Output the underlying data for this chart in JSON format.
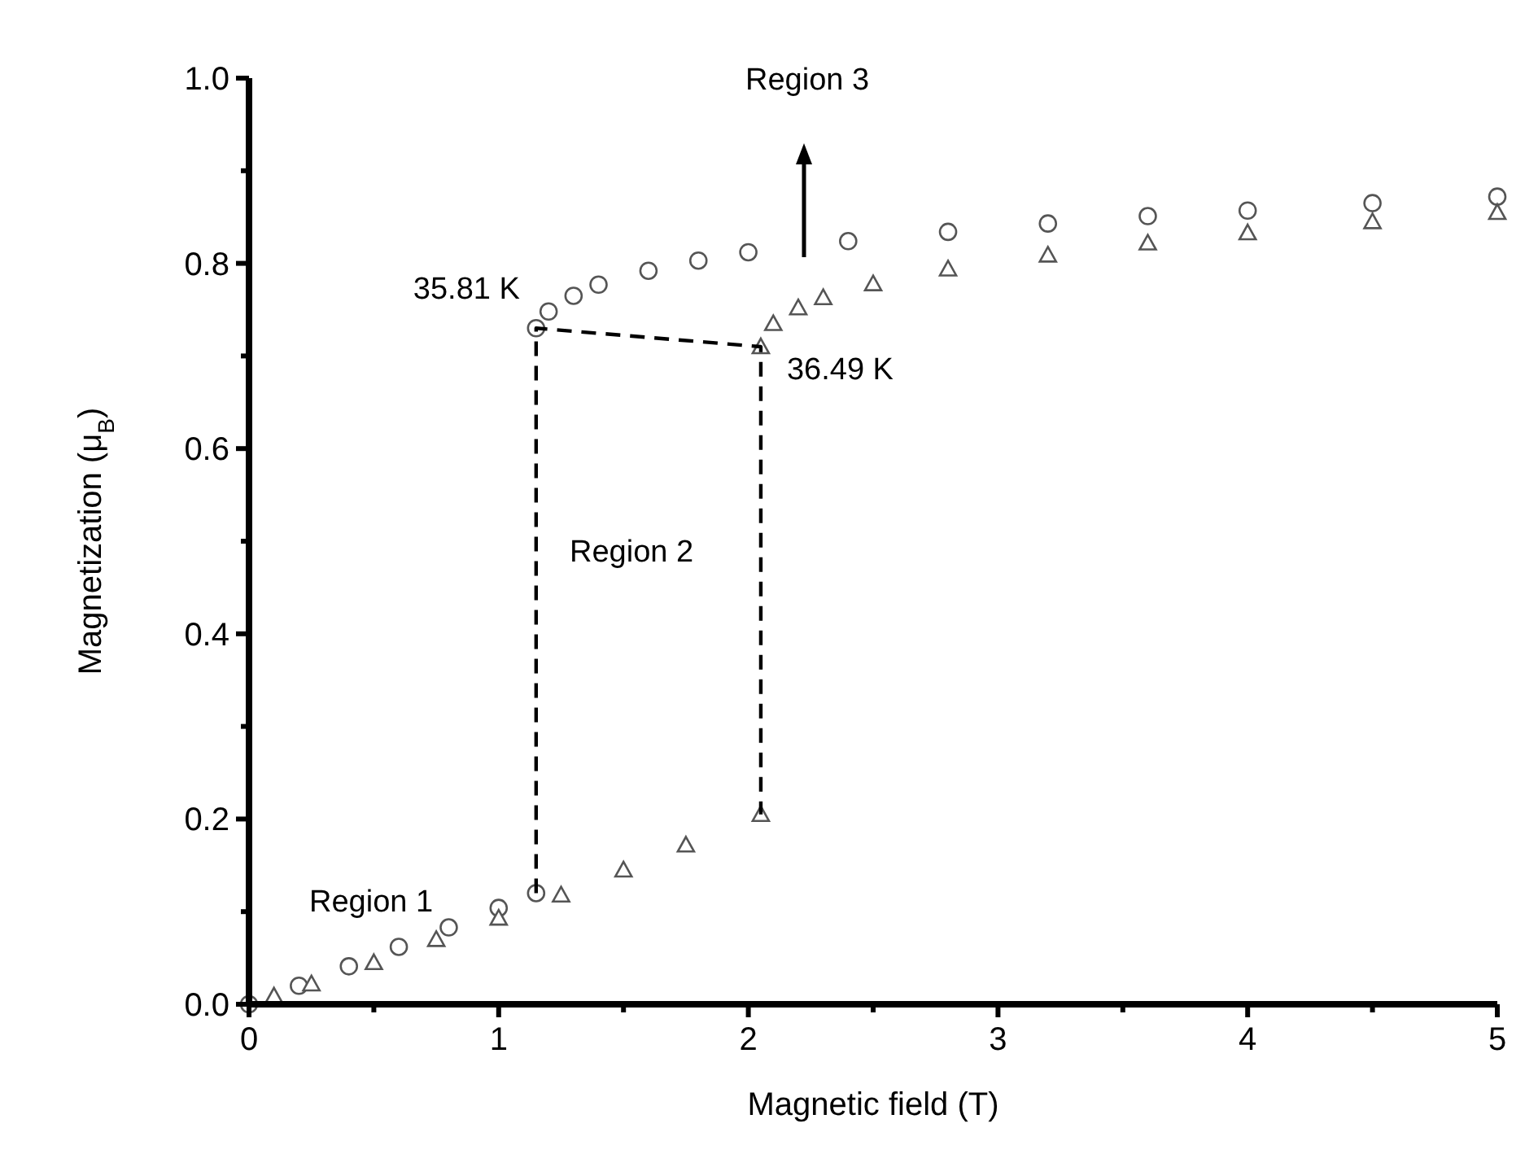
{
  "chart_data": {
    "type": "scatter",
    "xlabel": "Magnetic field (T)",
    "ylabel": "Magnetization (μ$_{B}$)",
    "xlim": [
      0,
      5
    ],
    "ylim": [
      0,
      1
    ],
    "xticks": [
      0,
      {
        "value": 0.5,
        "label": null
      },
      1,
      {
        "value": 1.5,
        "label": null
      },
      2,
      {
        "value": 2.5,
        "label": null
      },
      3,
      {
        "value": 3.5,
        "label": null
      },
      4,
      {
        "value": 4.5,
        "label": null
      },
      5
    ],
    "yticks": [
      {
        "value": 0,
        "label": "0.0"
      },
      {
        "value": 0.1,
        "label": null
      },
      0.2,
      {
        "value": 0.3,
        "label": null
      },
      0.4,
      {
        "value": 0.5,
        "label": null
      },
      0.6,
      {
        "value": 0.7,
        "label": null
      },
      0.8,
      {
        "value": 0.9,
        "label": null
      },
      {
        "value": 1,
        "label": "1.0"
      }
    ],
    "grid": false,
    "series": [
      {
        "marker": "circle",
        "color": "#555555",
        "x": [
          0,
          0.2,
          0.4,
          0.6,
          0.8,
          1.0,
          1.15,
          1.15,
          1.2,
          1.3,
          1.4,
          1.6,
          1.8,
          2.0,
          2.4,
          2.8,
          3.2,
          3.6,
          4.0,
          4.5,
          5.0
        ],
        "values": [
          0,
          0.02,
          0.041,
          0.062,
          0.083,
          0.104,
          0.12,
          0.73,
          0.748,
          0.765,
          0.777,
          0.792,
          0.803,
          0.812,
          0.824,
          0.834,
          0.843,
          0.851,
          0.857,
          0.865,
          0.872
        ]
      },
      {
        "marker": "triangle",
        "color": "#555555",
        "x": [
          0.1,
          0.25,
          0.5,
          0.75,
          1.0,
          1.25,
          1.5,
          1.75,
          2.05,
          2.05,
          2.1,
          2.2,
          2.3,
          2.5,
          2.8,
          3.2,
          3.6,
          4.0,
          4.5,
          5.0
        ],
        "values": [
          0.009,
          0.022,
          0.045,
          0.07,
          0.093,
          0.118,
          0.145,
          0.172,
          0.205,
          0.71,
          0.735,
          0.752,
          0.763,
          0.778,
          0.794,
          0.809,
          0.822,
          0.833,
          0.845,
          0.855
        ]
      },
      {
        "type": "line",
        "marker": "none",
        "line_style": "dashed",
        "color": "#000000",
        "x": [
          1.15,
          1.15,
          2.05,
          2.05
        ],
        "values": [
          0.12,
          0.73,
          0.71,
          0.205
        ]
      }
    ],
    "annotations": [
      {
        "text": "35.81 K",
        "x": 1.15,
        "y": 0.73
      },
      {
        "text": "36.49 K",
        "x": 2.05,
        "y": 0.71
      },
      "Region 1",
      "Region 2",
      "Region 3"
    ]
  }
}
